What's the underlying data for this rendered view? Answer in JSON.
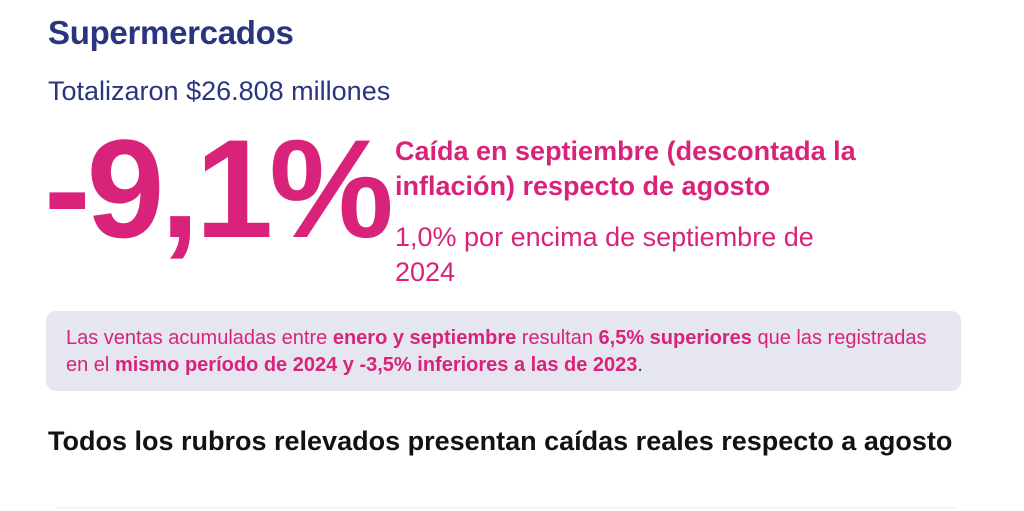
{
  "header": {
    "title": "Supermercados",
    "subtitle": "Totalizaron $26.808 millones"
  },
  "highlight": {
    "value": "-9,1%",
    "headline": "Caída en septiembre (descontada la inflación) respecto de agosto",
    "secondary": "1,0% por encima de septiembre de 2024"
  },
  "info_box": {
    "t1": "Las ventas acumuladas entre ",
    "b1": "enero y septiembre",
    "t2": " resultan ",
    "b2": "6,5% superiores",
    "t3": " que las registradas en el ",
    "b3": "mismo período de 2024 y -3,5% inferiores a las de 2023",
    "t4": "."
  },
  "section": {
    "heading": "Todos los rubros relevados presentan caídas reales respecto a agosto"
  },
  "colors": {
    "title_navy": "#2a3580",
    "accent_pink": "#d9237b",
    "box_background": "#e5e6ef",
    "heading_dark": "#121212"
  }
}
